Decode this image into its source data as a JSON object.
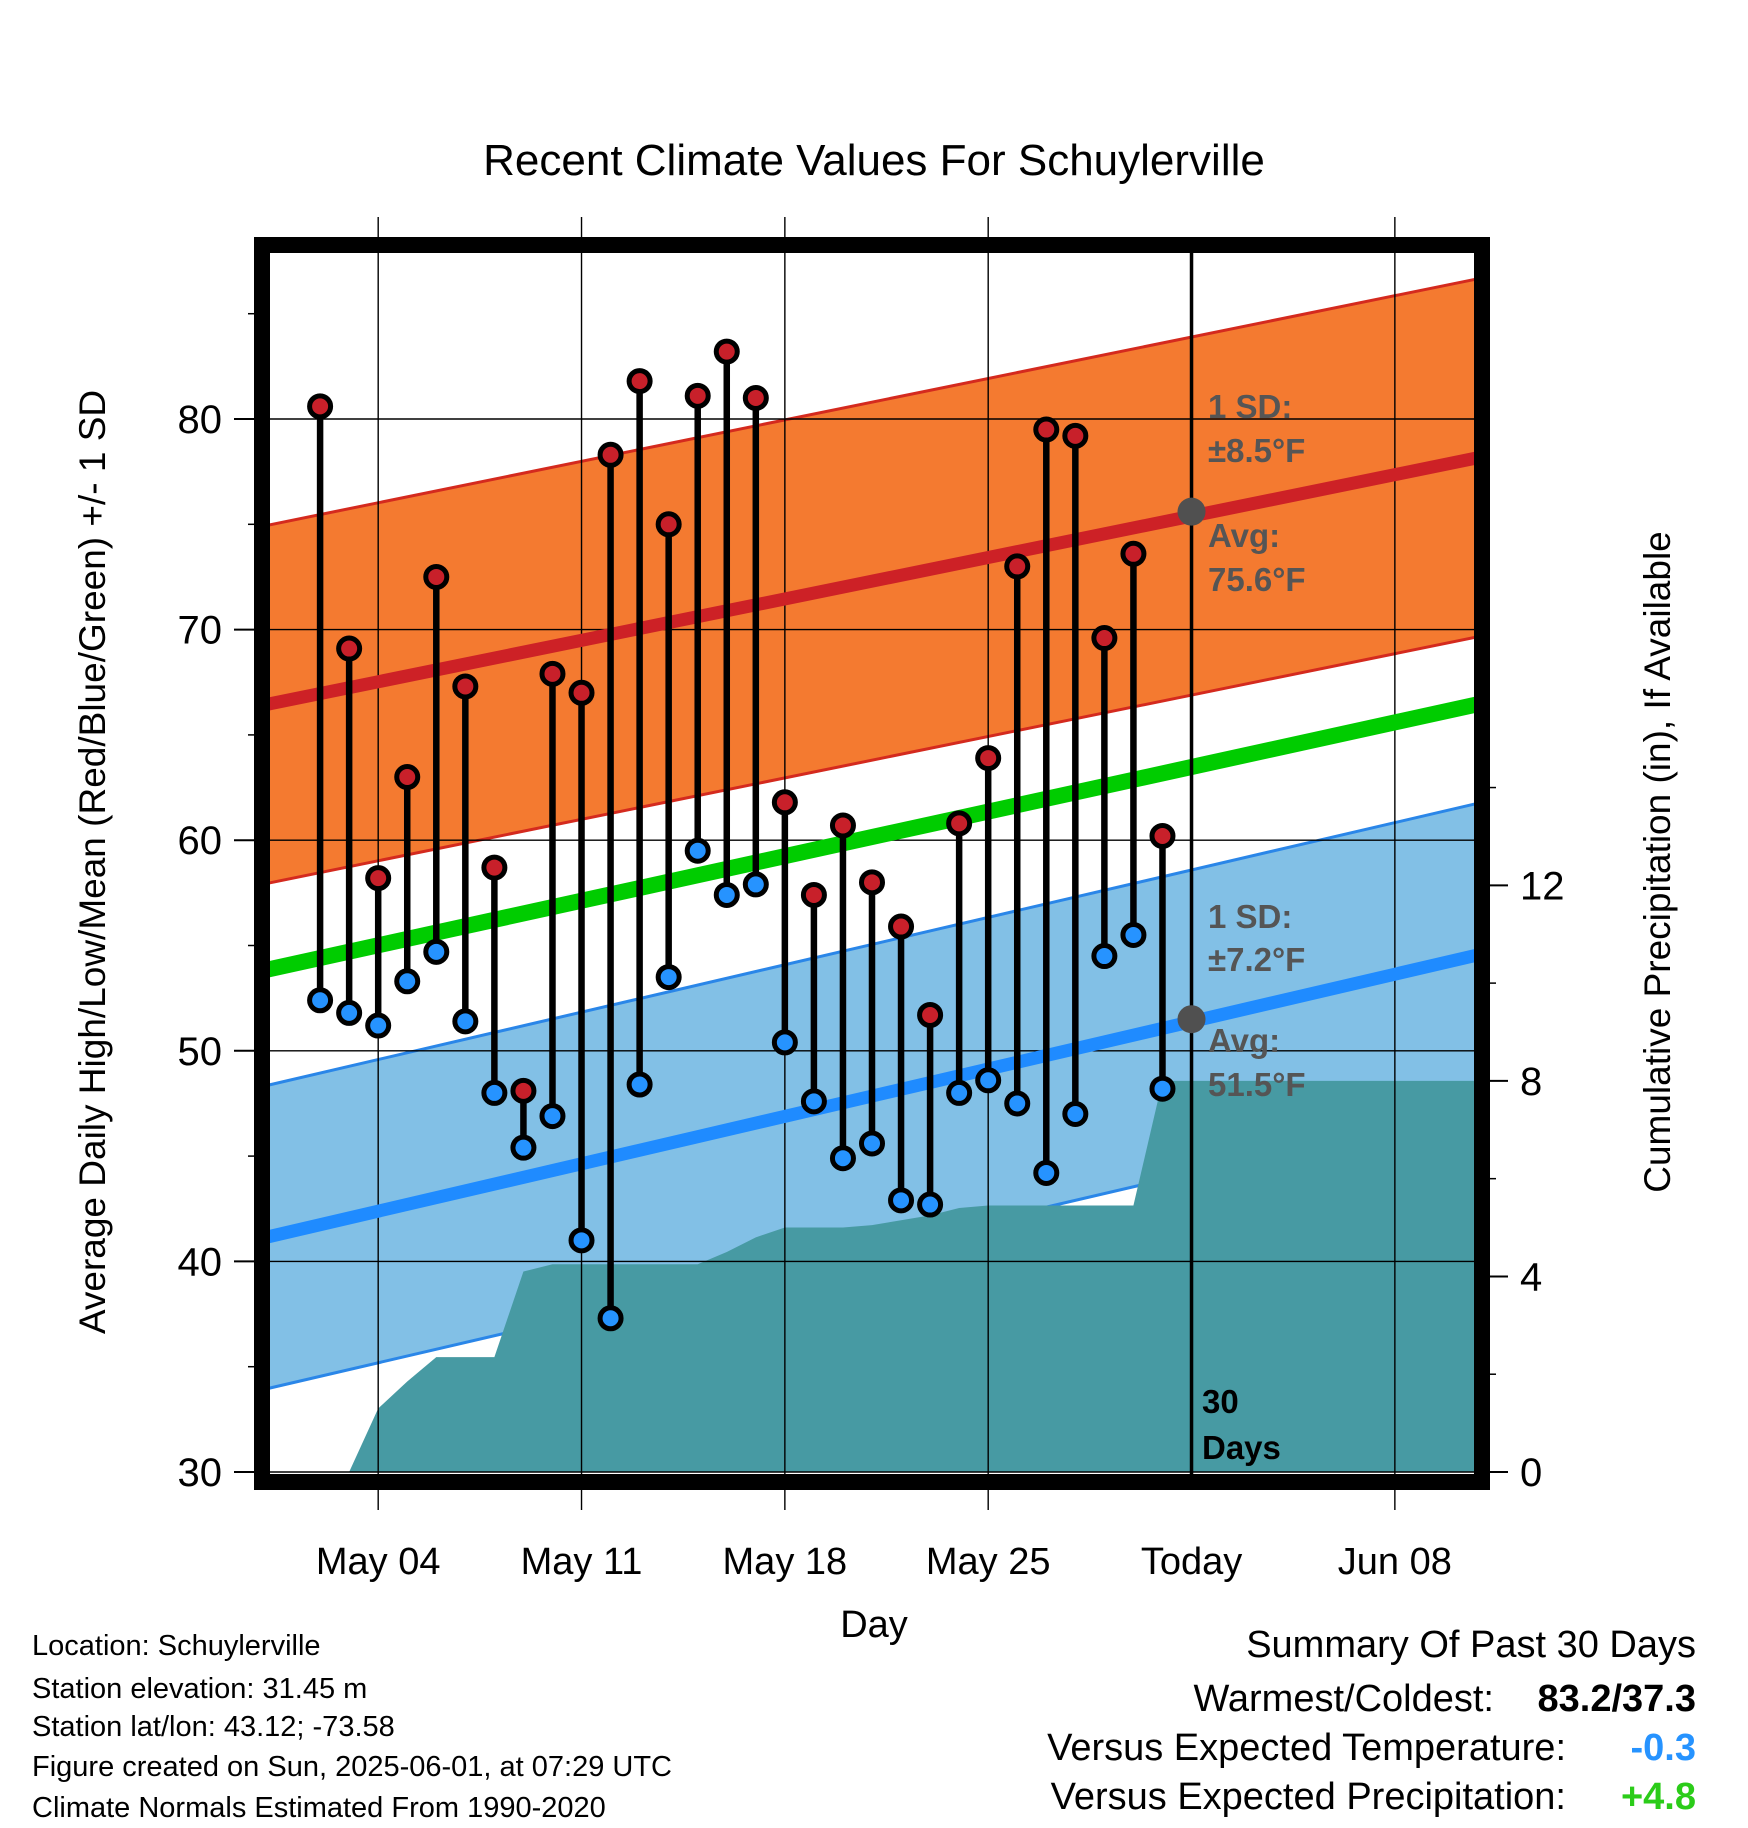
{
  "chart_data": {
    "type": "line",
    "title": "Recent Climate Values For Schuylerville",
    "xlabel": "Day",
    "ylabel": "Average Daily High/Low/Mean (Red/Blue/Green) +/- 1 SD",
    "y2label": "Cumulative Precipitation (in), If Available",
    "ylim": [
      30,
      88.5
    ],
    "y2lim": [
      0,
      25.2
    ],
    "y_ticks": [
      "30",
      "40",
      "50",
      "60",
      "70",
      "80"
    ],
    "y2_ticks": [
      "0",
      "4",
      "8",
      "12"
    ],
    "x_range": [
      "2025-04-30",
      "2025-06-11"
    ],
    "x_ticks": [
      {
        "date": "2025-05-04",
        "label": "May 04"
      },
      {
        "date": "2025-05-11",
        "label": "May 11"
      },
      {
        "date": "2025-05-18",
        "label": "May 18"
      },
      {
        "date": "2025-05-25",
        "label": "May 25"
      },
      {
        "date": "2025-06-01",
        "label": "Today"
      },
      {
        "date": "2025-06-08",
        "label": "Jun 08"
      }
    ],
    "today_date": "2025-06-01",
    "window_label": "30 Days",
    "dates": [
      "2025-05-02",
      "2025-05-03",
      "2025-05-04",
      "2025-05-05",
      "2025-05-06",
      "2025-05-07",
      "2025-05-08",
      "2025-05-09",
      "2025-05-10",
      "2025-05-11",
      "2025-05-12",
      "2025-05-13",
      "2025-05-14",
      "2025-05-15",
      "2025-05-16",
      "2025-05-17",
      "2025-05-18",
      "2025-05-19",
      "2025-05-20",
      "2025-05-21",
      "2025-05-22",
      "2025-05-23",
      "2025-05-24",
      "2025-05-25",
      "2025-05-26",
      "2025-05-27",
      "2025-05-28",
      "2025-05-29",
      "2025-05-30",
      "2025-05-31"
    ],
    "series": [
      {
        "name": "High",
        "color": "#c8202a",
        "values": [
          80.6,
          69.1,
          58.2,
          63.0,
          72.5,
          67.3,
          58.7,
          48.1,
          67.9,
          67.0,
          78.3,
          81.8,
          75.0,
          81.1,
          83.2,
          81.0,
          61.8,
          57.4,
          60.7,
          58.0,
          55.9,
          51.7,
          60.8,
          63.9,
          73.0,
          79.5,
          79.2,
          69.6,
          73.6,
          60.2
        ]
      },
      {
        "name": "Low",
        "color": "#2693ff",
        "values": [
          52.4,
          51.8,
          51.2,
          53.3,
          54.7,
          51.4,
          48.0,
          45.4,
          46.9,
          41.0,
          37.3,
          48.4,
          53.5,
          59.5,
          57.4,
          57.9,
          50.4,
          47.6,
          44.9,
          45.6,
          42.9,
          42.7,
          48.0,
          48.6,
          47.5,
          44.2,
          47.0,
          54.5,
          55.5,
          48.2
        ]
      }
    ],
    "normals": {
      "dates": [
        "2025-04-30",
        "2025-06-11"
      ],
      "high_avg": [
        66.4,
        78.2
      ],
      "high_sd": 8.5,
      "low_avg": [
        41.1,
        54.6
      ],
      "low_sd": 7.2,
      "mean_avg": [
        53.8,
        66.5
      ],
      "high_color": "#f47a30",
      "low_color": "#82c0e6",
      "mean_color": "#00cc00"
    },
    "precipitation": {
      "color": "#479aa3",
      "dates": [
        "2025-05-02",
        "2025-05-03",
        "2025-05-04",
        "2025-05-05",
        "2025-05-06",
        "2025-05-07",
        "2025-05-08",
        "2025-05-09",
        "2025-05-10",
        "2025-05-11",
        "2025-05-12",
        "2025-05-13",
        "2025-05-14",
        "2025-05-15",
        "2025-05-16",
        "2025-05-17",
        "2025-05-18",
        "2025-05-19",
        "2025-05-20",
        "2025-05-21",
        "2025-05-22",
        "2025-05-23",
        "2025-05-24",
        "2025-05-25",
        "2025-05-26",
        "2025-05-27",
        "2025-05-28",
        "2025-05-29",
        "2025-05-30",
        "2025-05-31",
        "2025-06-11"
      ],
      "values": [
        0,
        0,
        1.3,
        1.85,
        2.35,
        2.35,
        2.35,
        4.1,
        4.25,
        4.25,
        4.25,
        4.25,
        4.25,
        4.25,
        4.5,
        4.8,
        5.0,
        5.0,
        5.0,
        5.05,
        5.15,
        5.25,
        5.4,
        5.45,
        5.45,
        5.45,
        5.45,
        5.45,
        5.45,
        8.0,
        8.0
      ]
    },
    "annotations": {
      "high_sd_line1": "1 SD:",
      "high_sd_line2": "±8.5°F",
      "high_avg_line1": "Avg:",
      "high_avg_line2": "75.6°F",
      "low_sd_line1": "1 SD:",
      "low_sd_line2": "±7.2°F",
      "low_avg_line1": "Avg:",
      "low_avg_line2": "51.5°F",
      "days_line1": "30",
      "days_line2": "Days",
      "today_high_avg": 75.6,
      "today_low_avg": 51.5
    },
    "grid": true
  },
  "station_info": [
    "Location: Schuylerville",
    "Station elevation: 31.45 m",
    "Station lat/lon: 43.12; -73.58",
    "Figure created on Sun, 2025-06-01, at 07:29 UTC",
    "Climate Normals Estimated From 1990-2020"
  ],
  "summary": {
    "title": "Summary Of Past 30 Days",
    "warmest_coldest_label": "Warmest/Coldest:",
    "warmest_coldest_value": "83.2/37.3",
    "temp_label": "Versus Expected Temperature:",
    "temp_value": "-0.3",
    "temp_color": "#2693ff",
    "precip_label": "Versus Expected Precipitation:",
    "precip_value": "+4.8",
    "precip_color": "#2bcc19"
  }
}
